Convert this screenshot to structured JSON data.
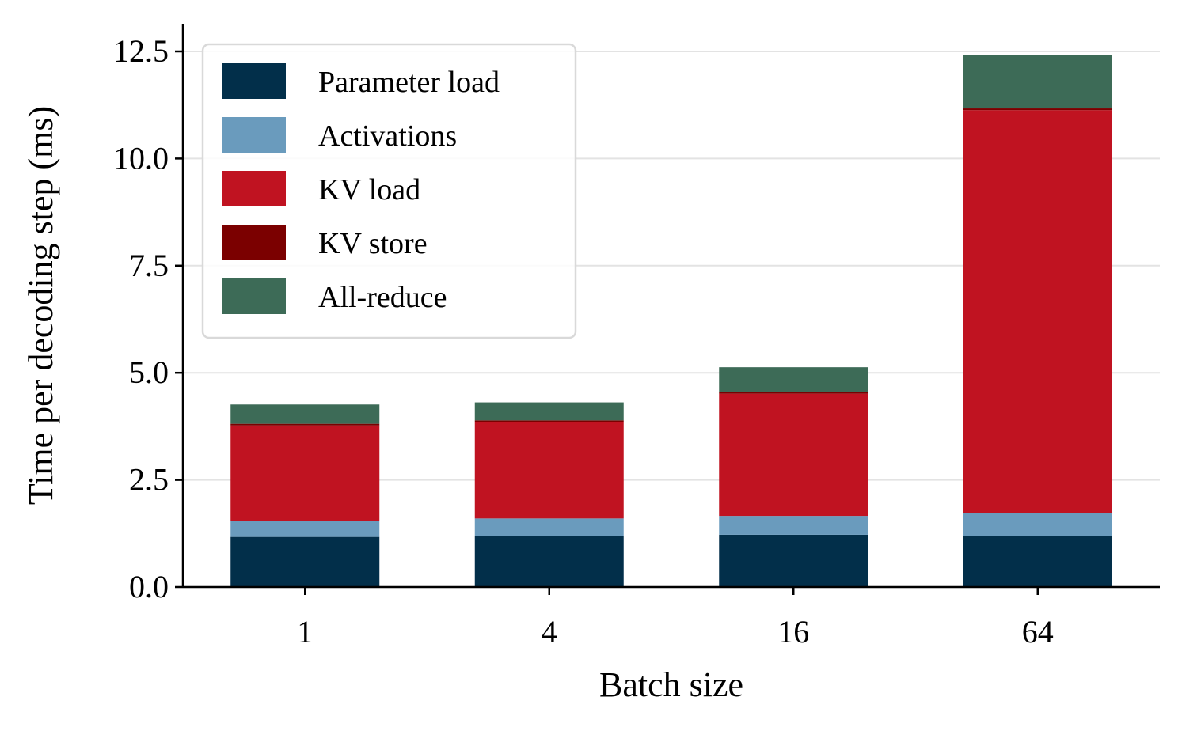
{
  "chart_data": {
    "type": "bar",
    "stacked": true,
    "categories": [
      "1",
      "4",
      "16",
      "64"
    ],
    "xlabel": "Batch size",
    "ylabel": "Time per decoding step (ms)",
    "ylim": [
      0,
      13.2
    ],
    "yticks": [
      "0.0",
      "2.5",
      "5.0",
      "7.5",
      "10.0",
      "12.5"
    ],
    "grid": "y",
    "legend": "top-left",
    "series": [
      {
        "name": "Parameter load",
        "color": "#022f4a",
        "values": [
          1.17,
          1.19,
          1.22,
          1.19
        ]
      },
      {
        "name": "Activations",
        "color": "#6a9bbd",
        "values": [
          0.38,
          0.41,
          0.44,
          0.54
        ]
      },
      {
        "name": "KV load",
        "color": "#c01321",
        "values": [
          2.22,
          2.25,
          2.85,
          9.4
        ]
      },
      {
        "name": "KV store",
        "color": "#7b0000",
        "values": [
          0.04,
          0.04,
          0.04,
          0.04
        ]
      },
      {
        "name": "All-reduce",
        "color": "#3d6b57",
        "values": [
          0.45,
          0.42,
          0.58,
          1.24
        ]
      }
    ]
  }
}
